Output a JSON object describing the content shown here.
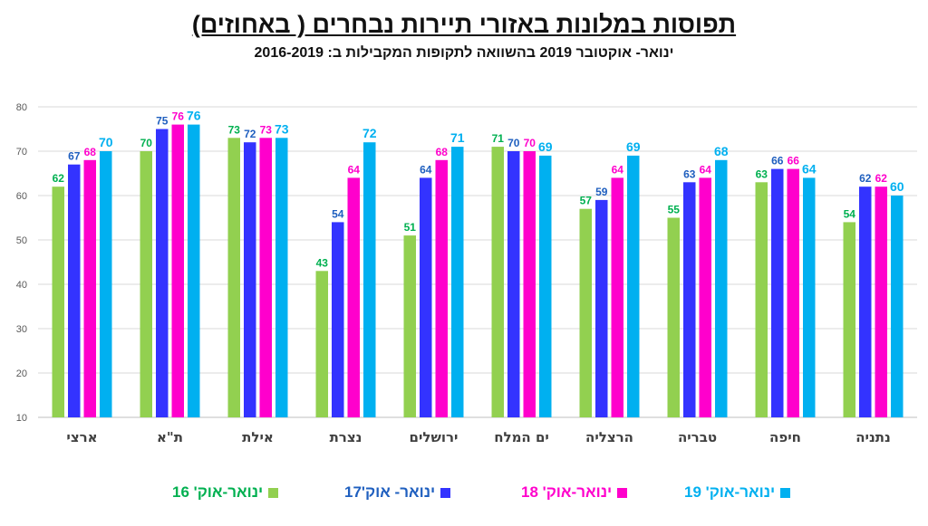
{
  "chart_data": {
    "type": "bar",
    "title": "תפוסות במלונות באזורי תיירות נבחרים ( באחוזים)",
    "subtitle": "ינואר- אוקטובר  2019 בהשוואה לתקופות המקבילות ב: 2016-2019",
    "categories": [
      "ארצי",
      "ת\"א",
      "אילת",
      "נצרת",
      "ירושלים",
      "ים המלח",
      "הרצליה",
      "טבריה",
      "חיפה",
      "נתניה"
    ],
    "series": [
      {
        "name": "ינואר-אוק' 16",
        "color": "#92d050",
        "label_color": "#00b050",
        "values": [
          62,
          70,
          73,
          43,
          51,
          71,
          57,
          55,
          63,
          54
        ]
      },
      {
        "name": "ינואר- אוק'17",
        "color": "#3333ff",
        "label_color": "#1f5fbf",
        "values": [
          67,
          75,
          72,
          54,
          64,
          70,
          59,
          63,
          66,
          62
        ]
      },
      {
        "name": "ינואר-אוק' 18",
        "color": "#ff00cc",
        "label_color": "#ff00cc",
        "values": [
          68,
          76,
          73,
          64,
          68,
          70,
          64,
          64,
          66,
          62
        ]
      },
      {
        "name": "ינואר-אוק' 19",
        "color": "#00b0f0",
        "label_color": "#00b0f0",
        "values": [
          70,
          76,
          73,
          72,
          71,
          69,
          69,
          68,
          64,
          60
        ]
      }
    ],
    "ylim": [
      10,
      80
    ],
    "yticks": [
      10,
      20,
      30,
      40,
      50,
      60,
      70,
      80
    ],
    "grid": true,
    "legend_position": "bottom"
  }
}
